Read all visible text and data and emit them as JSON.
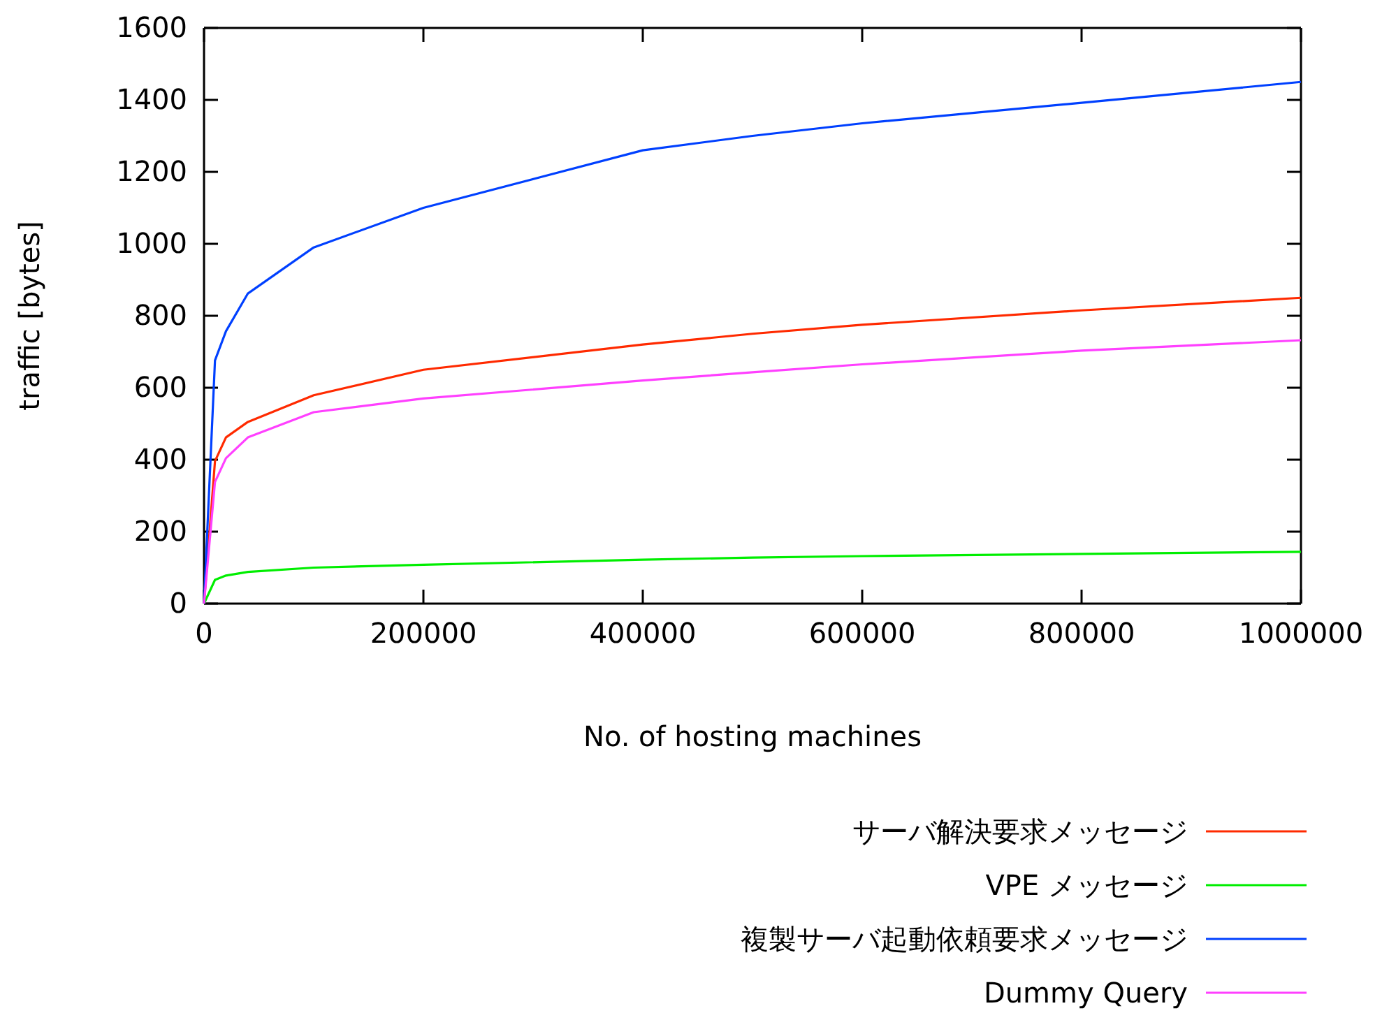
{
  "chart_data": {
    "type": "line",
    "xlabel": "No. of hosting machines",
    "ylabel": "traffic [bytes]",
    "x": [
      0,
      10000,
      20000,
      40000,
      100000,
      200000,
      400000,
      500000,
      600000,
      800000,
      1000000
    ],
    "xlim": [
      0,
      1000000
    ],
    "xticks": [
      0,
      200000,
      400000,
      600000,
      800000,
      1000000
    ],
    "ylim": [
      0,
      1600
    ],
    "yticks": [
      0,
      200,
      400,
      600,
      800,
      1000,
      1200,
      1400,
      1600
    ],
    "grid": false,
    "legend": "bottom right",
    "marker": "none",
    "line_style": "solid",
    "series": [
      {
        "name": "サーバ解決要求メッセージ",
        "color": "#ff2a00",
        "values": [
          0,
          396,
          462,
          505,
          579,
          650,
          720,
          750,
          775,
          815,
          850
        ]
      },
      {
        "name": "VPE メッセージ",
        "color": "#00ee00",
        "values": [
          0,
          66,
          78,
          88,
          100,
          108,
          122,
          128,
          132,
          138,
          144
        ]
      },
      {
        "name": "複製サーバ起動依頼要求メッセージ",
        "color": "#0040ff",
        "values": [
          0,
          676,
          757,
          862,
          990,
          1100,
          1260,
          1300,
          1335,
          1392,
          1450
        ]
      },
      {
        "name": "Dummy Query",
        "color": "#ff40ff",
        "values": [
          0,
          338,
          404,
          462,
          532,
          570,
          620,
          643,
          665,
          703,
          732
        ]
      }
    ]
  }
}
